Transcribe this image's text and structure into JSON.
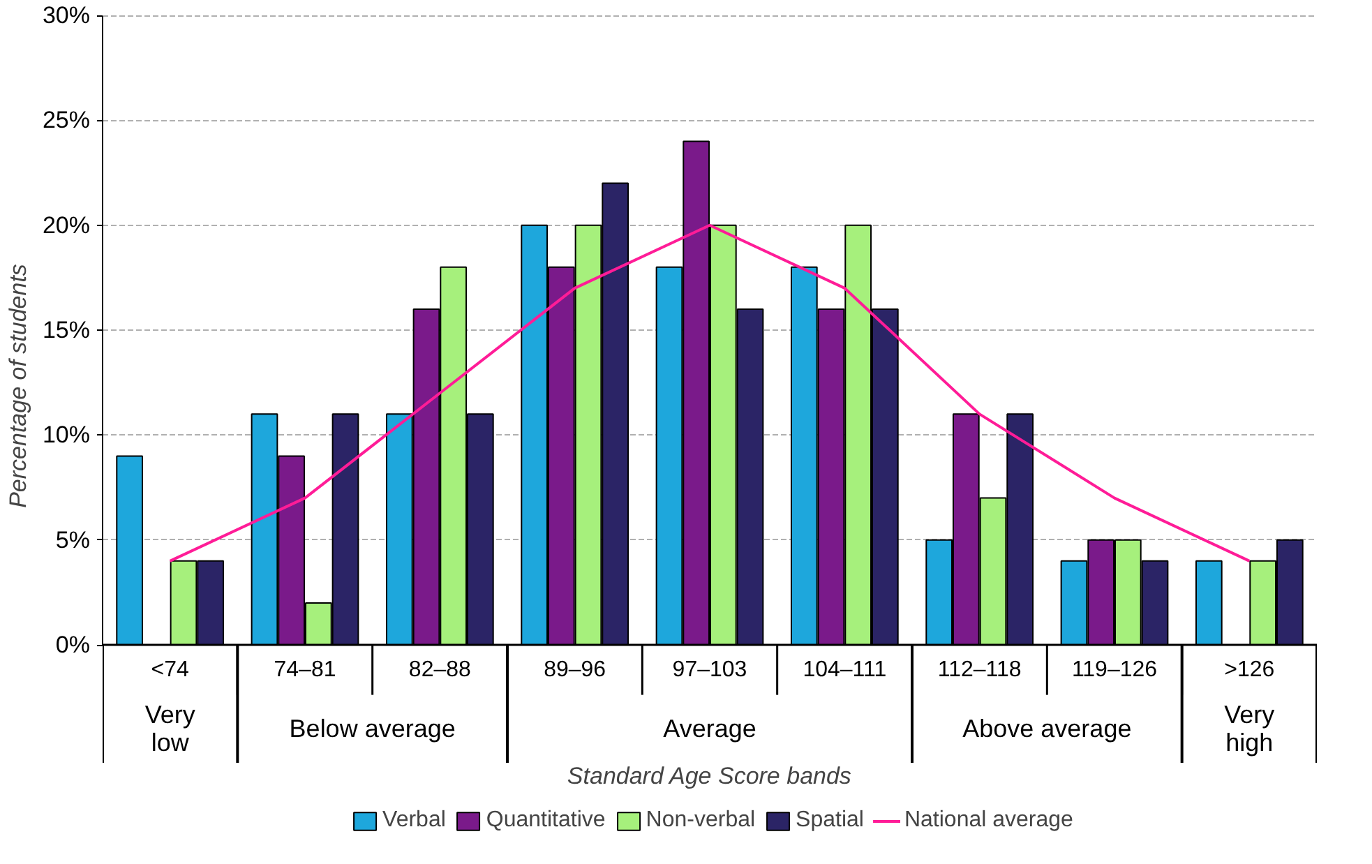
{
  "chart_data": {
    "type": "bar",
    "xlabel": "Standard Age Score bands",
    "ylabel": "Percentage of students",
    "categories": [
      "<74",
      "74–81",
      "82–88",
      "89–96",
      "97–103",
      "104–111",
      "112–118",
      "119–126",
      ">126"
    ],
    "series": [
      {
        "name": "Verbal",
        "color": "#1ea7dc",
        "values": [
          9,
          11,
          11,
          20,
          18,
          18,
          5,
          4,
          4
        ]
      },
      {
        "name": "Quantitative",
        "color": "#7a1a8a",
        "values": [
          null,
          9,
          16,
          18,
          24,
          16,
          11,
          5,
          null
        ]
      },
      {
        "name": "Non-verbal",
        "color": "#a6f07c",
        "values": [
          4,
          2,
          18,
          20,
          20,
          20,
          7,
          5,
          4
        ]
      },
      {
        "name": "Spatial",
        "color": "#2b2466",
        "values": [
          4,
          11,
          11,
          22,
          16,
          16,
          11,
          4,
          5
        ]
      },
      {
        "name": "National average",
        "type": "line",
        "color": "#ff1c97",
        "values": [
          4,
          7,
          12,
          17,
          20,
          17,
          11,
          7,
          4
        ]
      }
    ],
    "ylim": [
      0,
      30
    ],
    "yticks": [
      {
        "value": 0,
        "label": "0%"
      },
      {
        "value": 5,
        "label": "5%"
      },
      {
        "value": 10,
        "label": "10%"
      },
      {
        "value": 15,
        "label": "15%"
      },
      {
        "value": 20,
        "label": "20%"
      },
      {
        "value": 25,
        "label": "25%"
      },
      {
        "value": 30,
        "label": "30%"
      }
    ],
    "grid": "y",
    "legend": "bottom",
    "marker": "none",
    "line_style": "solid",
    "annotations": [
      "Very low",
      "Below average",
      "Average",
      "Above average",
      "Very high"
    ]
  }
}
